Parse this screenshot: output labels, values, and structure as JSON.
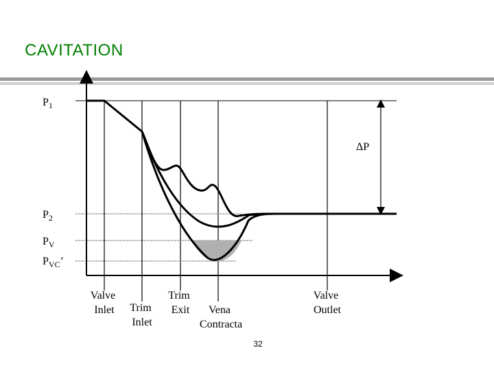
{
  "title": "CAVITATION",
  "page_number": "32",
  "colors": {
    "title": "#008000",
    "rule_dark": "#9a9a9a",
    "rule_light": "#cfcfcf",
    "cavitation_fill": "#b0b0b0"
  },
  "levels": {
    "p1": {
      "main": "P",
      "sub": "1",
      "suffix": ""
    },
    "p2": {
      "main": "P",
      "sub": "2",
      "suffix": ""
    },
    "pv": {
      "main": "P",
      "sub": "V",
      "suffix": ""
    },
    "pvc": {
      "main": "P",
      "sub": "VC",
      "suffix": "’"
    }
  },
  "delta_p": "ΔP",
  "positions": {
    "valve_inlet": [
      "Valve",
      "Inlet"
    ],
    "trim_inlet": [
      "Trim",
      "Inlet"
    ],
    "trim_exit": [
      "Trim",
      "Exit"
    ],
    "vena_contracta": [
      "Vena",
      "Contracta"
    ],
    "valve_outlet": [
      "Valve",
      "Outlet"
    ]
  }
}
